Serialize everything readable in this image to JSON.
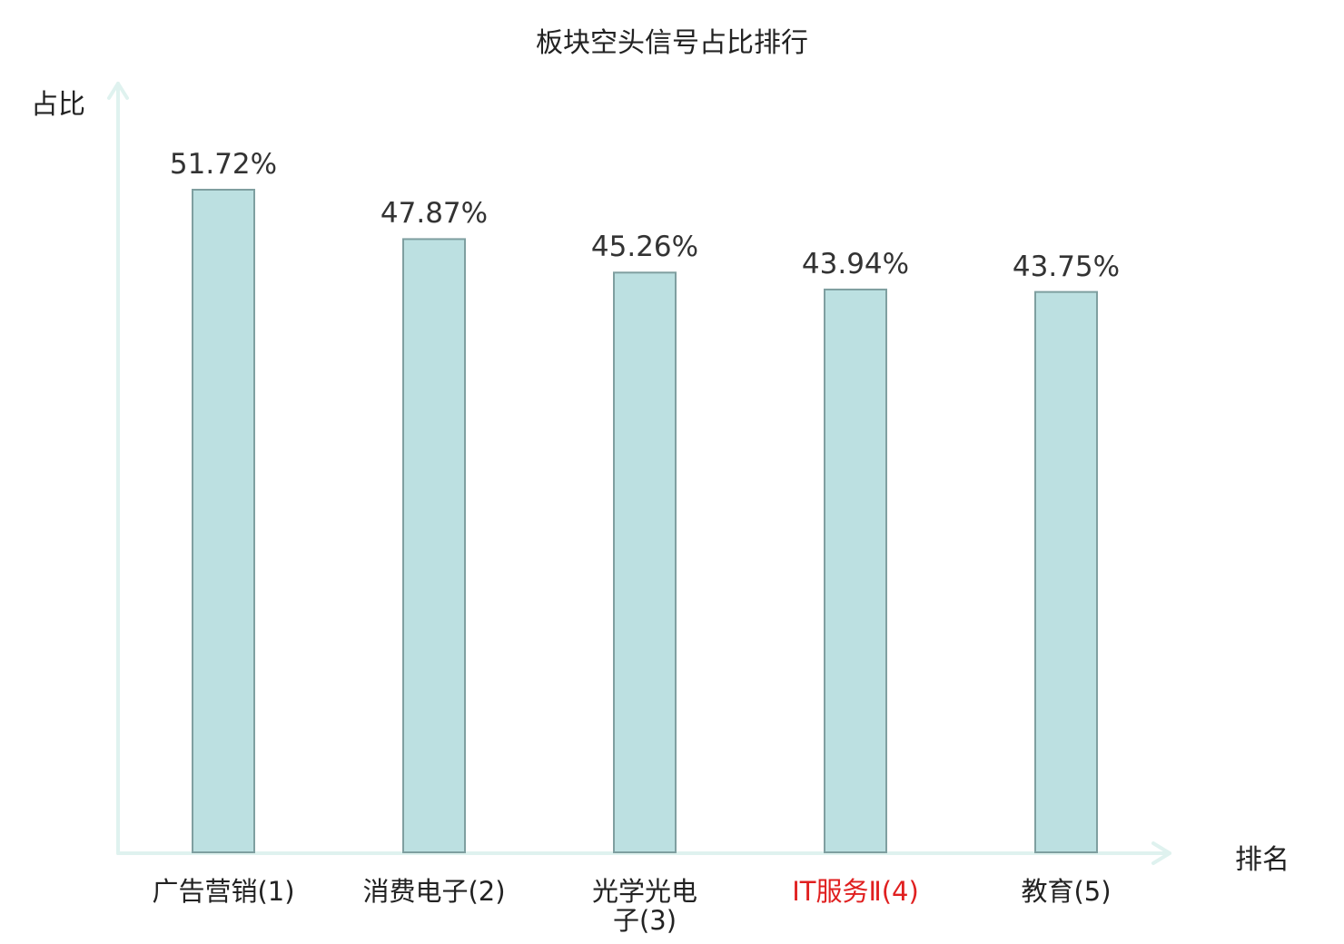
{
  "chart_data": {
    "type": "bar",
    "title": "板块空头信号占比排行",
    "ylabel": "占比",
    "xlabel": "排名",
    "categories": [
      "广告营销(1)",
      "消费电子(2)",
      "光学光电子(3)",
      "IT服务Ⅱ(4)",
      "教育(5)"
    ],
    "values": [
      51.72,
      47.87,
      45.26,
      43.94,
      43.75
    ],
    "value_labels": [
      "51.72%",
      "47.87%",
      "45.26%",
      "43.94%",
      "43.75%"
    ],
    "highlight_index": 3,
    "ylim": [
      0,
      60
    ],
    "grid": false,
    "colors": {
      "bar_fill": "#bce0e1",
      "bar_stroke": "#7f9fa0",
      "axis": "#dff2ef",
      "highlight_text": "#e02020"
    }
  }
}
